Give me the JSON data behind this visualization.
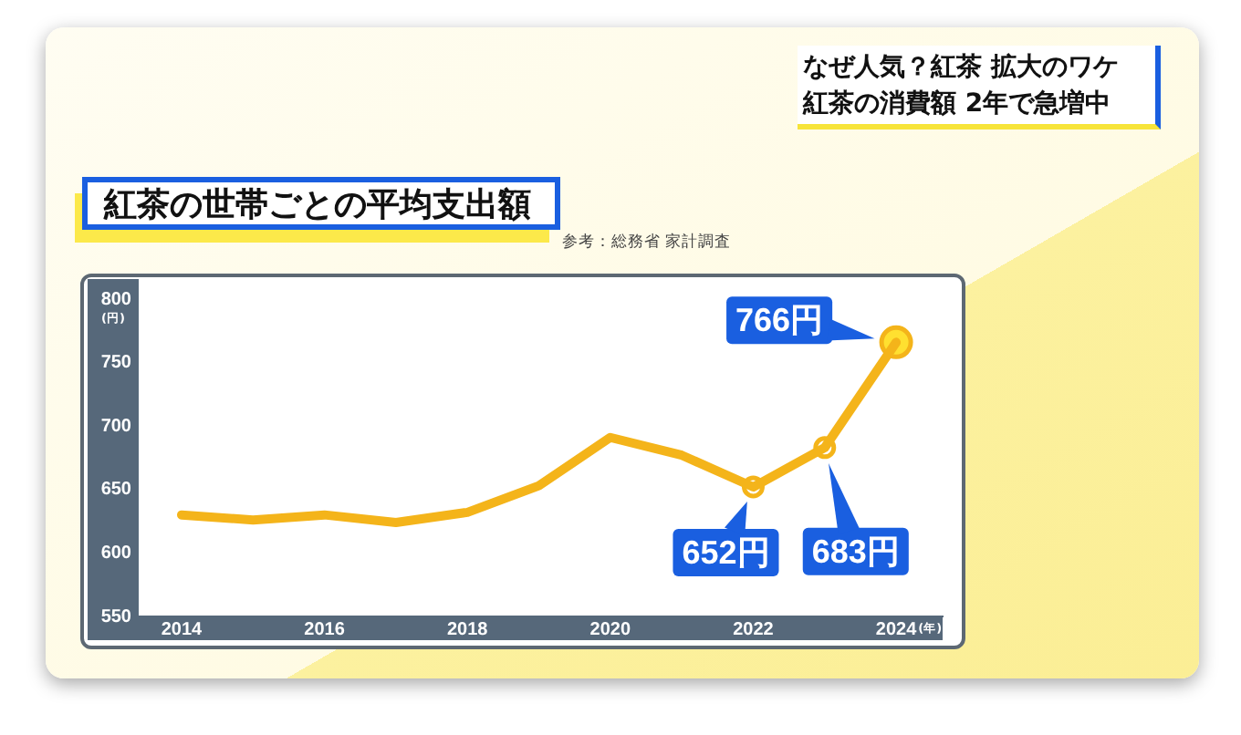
{
  "chart_data": {
    "type": "line",
    "title": "紅茶の世帯ごとの平均支出額",
    "subtitle": "なぜ人気？紅茶 拡大のワケ",
    "annotations": [
      "紅茶の消費額 2年で急増中",
      "参考：総務省 家計調査"
    ],
    "xlabel": "(年)",
    "ylabel": "(円)",
    "x": [
      2014,
      2015,
      2016,
      2017,
      2018,
      2019,
      2020,
      2021,
      2022,
      2023,
      2024
    ],
    "xlim": [
      2013.4,
      2024.65
    ],
    "xticks": [
      2014,
      2016,
      2018,
      2020,
      2022,
      2024
    ],
    "ylim": [
      550,
      800
    ],
    "yticks": [
      550,
      600,
      650,
      700,
      750,
      800
    ],
    "series": [
      {
        "type": "line",
        "color": "#f4b41a",
        "marker": "none",
        "values": [
          630,
          626,
          630,
          624,
          632,
          653,
          691,
          677,
          652,
          683,
          766
        ]
      },
      {
        "type": "scatter",
        "x": [
          2022,
          2023,
          2024
        ],
        "color": "#f4b41a",
        "colors": [
          "#ffffff",
          "#ffffff",
          "#ffe030"
        ],
        "marker": "circle",
        "values": [
          652,
          683,
          766
        ],
        "sizes": [
          0.39,
          0.39,
          1
        ],
        "value_labels": [
          "652円",
          "683円",
          "766円"
        ]
      }
    ]
  }
}
